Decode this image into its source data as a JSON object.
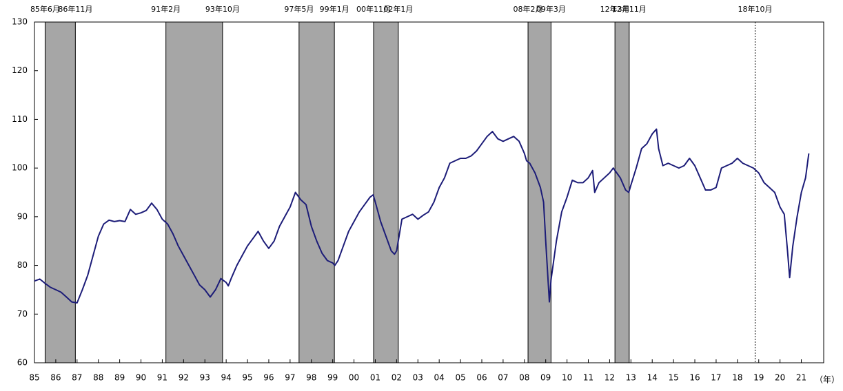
{
  "chart_data": {
    "type": "line",
    "x": [
      1985.0,
      1985.25,
      1985.5,
      1985.75,
      1986.0,
      1986.25,
      1986.5,
      1986.75,
      1987.0,
      1987.25,
      1987.5,
      1987.75,
      1988.0,
      1988.25,
      1988.5,
      1988.75,
      1989.0,
      1989.25,
      1989.5,
      1989.75,
      1990.0,
      1990.25,
      1990.5,
      1990.75,
      1991.0,
      1991.25,
      1991.5,
      1991.75,
      1992.0,
      1992.25,
      1992.5,
      1992.75,
      1993.0,
      1993.25,
      1993.5,
      1993.75,
      1994.0,
      1994.1,
      1994.25,
      1994.5,
      1994.75,
      1995.0,
      1995.25,
      1995.5,
      1995.75,
      1996.0,
      1996.25,
      1996.5,
      1996.75,
      1997.0,
      1997.25,
      1997.5,
      1997.75,
      1998.0,
      1998.25,
      1998.5,
      1998.75,
      1999.0,
      1999.1,
      1999.25,
      1999.5,
      1999.75,
      2000.0,
      2000.25,
      2000.5,
      2000.75,
      2000.9,
      2001.0,
      2001.25,
      2001.5,
      2001.75,
      2001.9,
      2002.0,
      2002.25,
      2002.5,
      2002.75,
      2003.0,
      2003.25,
      2003.5,
      2003.75,
      2004.0,
      2004.25,
      2004.5,
      2004.75,
      2005.0,
      2005.25,
      2005.5,
      2005.75,
      2006.0,
      2006.25,
      2006.5,
      2006.75,
      2007.0,
      2007.25,
      2007.5,
      2007.75,
      2008.0,
      2008.1,
      2008.25,
      2008.5,
      2008.75,
      2008.9,
      2009.0,
      2009.17,
      2009.25,
      2009.5,
      2009.75,
      2010.0,
      2010.25,
      2010.5,
      2010.75,
      2011.0,
      2011.2,
      2011.3,
      2011.5,
      2011.75,
      2012.0,
      2012.17,
      2012.5,
      2012.75,
      2012.9,
      2013.0,
      2013.25,
      2013.5,
      2013.75,
      2014.0,
      2014.2,
      2014.3,
      2014.5,
      2014.75,
      2015.0,
      2015.25,
      2015.5,
      2015.75,
      2016.0,
      2016.25,
      2016.5,
      2016.75,
      2017.0,
      2017.25,
      2017.5,
      2017.75,
      2018.0,
      2018.25,
      2018.5,
      2018.75,
      2019.0,
      2019.25,
      2019.5,
      2019.75,
      2020.0,
      2020.2,
      2020.35,
      2020.45,
      2020.6,
      2020.8,
      2021.0,
      2021.2,
      2021.35
    ],
    "values": [
      76.8,
      77.2,
      76.3,
      75.5,
      75,
      74.5,
      73.5,
      72.5,
      72.3,
      75,
      78,
      82,
      86,
      88.5,
      89.3,
      89,
      89.2,
      89,
      91.5,
      90.5,
      90.8,
      91.3,
      92.8,
      91.5,
      89.5,
      88.5,
      86.5,
      84,
      82,
      80,
      78,
      76,
      75,
      73.5,
      75,
      77.3,
      76.5,
      75.8,
      77.5,
      80,
      82,
      84,
      85.5,
      87,
      85,
      83.5,
      85,
      88,
      90,
      92,
      95,
      93.5,
      92.5,
      88,
      85,
      82.5,
      81,
      80.5,
      80,
      81,
      84,
      87,
      89,
      91,
      92.5,
      94,
      94.5,
      93,
      89,
      86,
      83,
      82.3,
      83,
      89.5,
      90,
      90.5,
      89.5,
      90.3,
      91,
      93,
      96,
      98,
      101,
      101.5,
      102,
      102,
      102.5,
      103.5,
      105,
      106.5,
      107.5,
      106,
      105.5,
      106,
      106.5,
      105.5,
      103,
      101.5,
      101,
      99,
      96,
      93,
      85,
      72.5,
      77,
      85,
      91,
      94,
      97.5,
      97,
      97,
      98,
      99.5,
      95,
      97,
      98,
      99,
      100,
      98,
      95.5,
      95,
      96.5,
      100,
      104,
      105,
      107,
      108,
      104,
      100.5,
      101,
      100.5,
      100,
      100.5,
      102,
      100.5,
      98,
      95.5,
      95.5,
      96,
      100,
      100.5,
      101,
      102,
      101,
      100.5,
      100,
      99,
      97,
      96,
      95,
      92,
      90.5,
      83,
      77.5,
      84,
      90,
      95,
      98,
      103
    ],
    "color": "#1c1c78",
    "xlim": [
      1985,
      2022.05
    ],
    "xticks": [
      {
        "value": 1985,
        "label": "85"
      },
      {
        "value": 1986,
        "label": "86"
      },
      {
        "value": 1987,
        "label": "87"
      },
      {
        "value": 1988,
        "label": "88"
      },
      {
        "value": 1989,
        "label": "89"
      },
      {
        "value": 1990,
        "label": "90"
      },
      {
        "value": 1991,
        "label": "91"
      },
      {
        "value": 1992,
        "label": "92"
      },
      {
        "value": 1993,
        "label": "93"
      },
      {
        "value": 1994,
        "label": "94"
      },
      {
        "value": 1995,
        "label": "95"
      },
      {
        "value": 1996,
        "label": "96"
      },
      {
        "value": 1997,
        "label": "97"
      },
      {
        "value": 1998,
        "label": "98"
      },
      {
        "value": 1999,
        "label": "99"
      },
      {
        "value": 2000,
        "label": "00"
      },
      {
        "value": 2001,
        "label": "01"
      },
      {
        "value": 2002,
        "label": "02"
      },
      {
        "value": 2003,
        "label": "03"
      },
      {
        "value": 2004,
        "label": "04"
      },
      {
        "value": 2005,
        "label": "05"
      },
      {
        "value": 2006,
        "label": "06"
      },
      {
        "value": 2007,
        "label": "07"
      },
      {
        "value": 2008,
        "label": "08"
      },
      {
        "value": 2009,
        "label": "09"
      },
      {
        "value": 2010,
        "label": "10"
      },
      {
        "value": 2011,
        "label": "11"
      },
      {
        "value": 2012,
        "label": "12"
      },
      {
        "value": 2013,
        "label": "13"
      },
      {
        "value": 2014,
        "label": "14"
      },
      {
        "value": 2015,
        "label": "15"
      },
      {
        "value": 2016,
        "label": "16"
      },
      {
        "value": 2017,
        "label": "17"
      },
      {
        "value": 2018,
        "label": "18"
      },
      {
        "value": 2019,
        "label": "19"
      },
      {
        "value": 2020,
        "label": "20"
      },
      {
        "value": 2021,
        "label": "21"
      }
    ],
    "ylim": [
      60,
      130
    ],
    "yticks": [
      60,
      70,
      80,
      90,
      100,
      110,
      120,
      130
    ],
    "x_label": "（年）",
    "recessions": [
      {
        "start": 1985.5,
        "end": 1986.92,
        "start_label": "85年6月",
        "end_label": "86年11月"
      },
      {
        "start": 1991.17,
        "end": 1993.83,
        "start_label": "91年2月",
        "end_label": "93年10月"
      },
      {
        "start": 1997.42,
        "end": 1999.08,
        "start_label": "97年5月",
        "end_label": "99年1月"
      },
      {
        "start": 2000.92,
        "end": 2002.08,
        "start_label": "00年11月",
        "end_label": "02年1月"
      },
      {
        "start": 2008.17,
        "end": 2009.25,
        "start_label": "08年2月",
        "end_label": "09年3月"
      },
      {
        "start": 2012.25,
        "end": 2012.92,
        "start_label": "12年3月",
        "end_label": "12年11月"
      },
      {
        "start": 2018.83,
        "start_label": "18年10月"
      }
    ]
  }
}
